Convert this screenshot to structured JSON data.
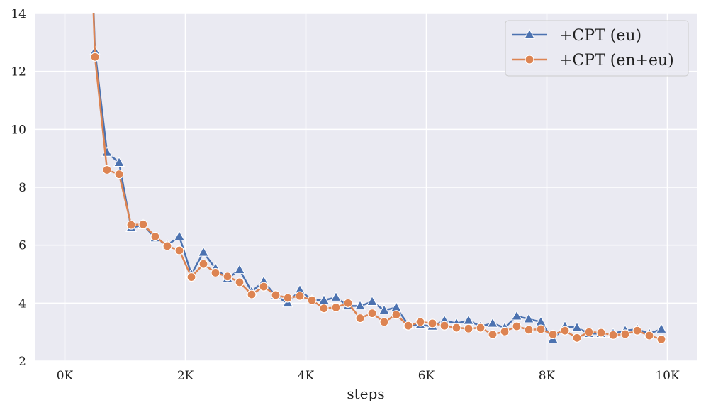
{
  "chart_data": {
    "type": "line",
    "title": "",
    "xlabel": "steps",
    "ylabel": "",
    "xlim": [
      -500,
      10500
    ],
    "ylim": [
      2,
      14
    ],
    "x_ticks": [
      0,
      2000,
      4000,
      6000,
      8000,
      10000
    ],
    "x_tick_labels": [
      "0K",
      "2K",
      "4K",
      "6K",
      "8K",
      "10K"
    ],
    "y_ticks": [
      2,
      4,
      6,
      8,
      10,
      12,
      14
    ],
    "y_tick_labels": [
      "2",
      "4",
      "6",
      "8",
      "10",
      "12",
      "14"
    ],
    "grid": true,
    "legend_position": "top-right",
    "background_color": "#eaeaf2",
    "x": [
      300,
      500,
      700,
      900,
      1100,
      1300,
      1500,
      1700,
      1900,
      2100,
      2300,
      2500,
      2700,
      2900,
      3100,
      3300,
      3500,
      3700,
      3900,
      4100,
      4300,
      4500,
      4700,
      4900,
      5100,
      5300,
      5500,
      5700,
      5900,
      6100,
      6300,
      6500,
      6700,
      6900,
      7100,
      7300,
      7500,
      7700,
      7900,
      8100,
      8300,
      8500,
      8700,
      8900,
      9100,
      9300,
      9500,
      9700,
      9900
    ],
    "series": [
      {
        "name": "+CPT (eu)",
        "color": "#4c72b0",
        "marker": "triangle",
        "values": [
          25.0,
          12.7,
          9.2,
          8.85,
          6.6,
          6.7,
          6.25,
          6.0,
          6.3,
          5.0,
          5.75,
          5.2,
          4.85,
          5.15,
          4.4,
          4.75,
          4.25,
          4.0,
          4.45,
          4.1,
          4.1,
          4.2,
          3.9,
          3.9,
          4.05,
          3.75,
          3.85,
          3.25,
          3.25,
          3.2,
          3.4,
          3.3,
          3.4,
          3.2,
          3.3,
          3.15,
          3.55,
          3.45,
          3.35,
          2.75,
          3.2,
          3.15,
          2.95,
          2.95,
          2.95,
          3.05,
          3.1,
          2.95,
          3.1
        ]
      },
      {
        "name": "+CPT (en+eu)",
        "color": "#dd8452",
        "marker": "circle",
        "values": [
          25.0,
          12.5,
          8.6,
          8.45,
          6.7,
          6.72,
          6.3,
          5.97,
          5.82,
          4.9,
          5.35,
          5.05,
          4.92,
          4.72,
          4.3,
          4.57,
          4.28,
          4.18,
          4.25,
          4.1,
          3.82,
          3.85,
          4.0,
          3.48,
          3.65,
          3.35,
          3.6,
          3.22,
          3.35,
          3.3,
          3.22,
          3.15,
          3.12,
          3.15,
          2.92,
          3.02,
          3.2,
          3.08,
          3.1,
          2.92,
          3.05,
          2.8,
          3.0,
          2.98,
          2.9,
          2.93,
          3.05,
          2.88,
          2.75
        ]
      }
    ]
  }
}
